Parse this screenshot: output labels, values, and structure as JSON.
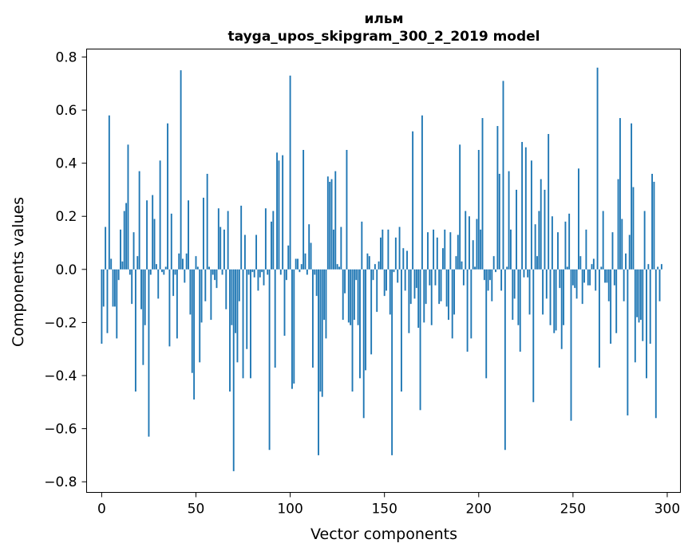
{
  "chart_data": {
    "type": "bar",
    "title_line1": "ильм",
    "title_line2": "tayga_upos_skipgram_300_2_2019 model",
    "xlabel": "Vector components",
    "ylabel": "Components values",
    "xlim": [
      -8,
      307
    ],
    "ylim": [
      -0.84,
      0.83
    ],
    "xticks": [
      0,
      50,
      100,
      150,
      200,
      250,
      300
    ],
    "xtick_labels": [
      "0",
      "50",
      "100",
      "150",
      "200",
      "250",
      "300"
    ],
    "yticks": [
      -0.8,
      -0.6,
      -0.4,
      -0.2,
      0.0,
      0.2,
      0.4,
      0.6,
      0.8
    ],
    "ytick_labels": [
      "−0.8",
      "−0.6",
      "−0.4",
      "−0.2",
      "0.0",
      "0.2",
      "0.4",
      "0.6",
      "0.8"
    ],
    "bar_color": "#1f77b4",
    "values": [
      -0.28,
      -0.14,
      0.16,
      -0.24,
      0.58,
      0.04,
      -0.14,
      -0.14,
      -0.26,
      -0.04,
      0.15,
      0.03,
      0.22,
      0.25,
      0.47,
      -0.02,
      -0.13,
      0.14,
      -0.46,
      0.05,
      0.37,
      -0.15,
      -0.36,
      -0.21,
      0.26,
      -0.63,
      -0.02,
      0.28,
      0.19,
      0.02,
      -0.11,
      0.41,
      -0.01,
      -0.02,
      0.01,
      0.55,
      -0.29,
      0.21,
      -0.1,
      -0.02,
      -0.26,
      0.06,
      0.75,
      0.04,
      -0.05,
      0.06,
      0.26,
      -0.17,
      -0.39,
      -0.49,
      0.05,
      0.01,
      -0.35,
      -0.2,
      0.27,
      -0.12,
      0.36,
      0.01,
      -0.19,
      -0.02,
      -0.04,
      -0.07,
      0.23,
      0.16,
      -0.02,
      0.15,
      -0.15,
      0.22,
      -0.46,
      -0.21,
      -0.76,
      -0.24,
      -0.35,
      -0.12,
      0.24,
      -0.41,
      0.13,
      -0.3,
      -0.02,
      -0.41,
      -0.01,
      -0.03,
      0.13,
      -0.08,
      -0.03,
      -0.01,
      -0.06,
      0.23,
      -0.02,
      -0.68,
      0.18,
      0.22,
      -0.37,
      0.44,
      0.41,
      -0.02,
      0.43,
      -0.25,
      -0.04,
      0.09,
      0.73,
      -0.45,
      -0.43,
      0.04,
      0.04,
      -0.01,
      0.02,
      0.45,
      0.06,
      -0.02,
      0.17,
      0.1,
      -0.37,
      -0.02,
      -0.1,
      -0.7,
      -0.46,
      -0.48,
      -0.19,
      -0.26,
      0.35,
      0.33,
      0.34,
      0.15,
      0.37,
      0.02,
      0.01,
      0.16,
      -0.19,
      -0.09,
      0.45,
      -0.2,
      -0.21,
      -0.46,
      -0.19,
      -0.04,
      -0.21,
      -0.41,
      0.18,
      -0.56,
      -0.38,
      0.06,
      0.05,
      -0.32,
      -0.04,
      0.02,
      -0.16,
      0.03,
      0.12,
      0.15,
      -0.1,
      -0.08,
      0.15,
      -0.17,
      -0.7,
      -0.01,
      0.12,
      -0.05,
      0.16,
      -0.46,
      0.08,
      -0.08,
      0.07,
      -0.24,
      -0.13,
      0.52,
      -0.11,
      -0.07,
      -0.22,
      -0.53,
      0.58,
      -0.2,
      -0.13,
      0.14,
      -0.06,
      -0.21,
      0.15,
      -0.06,
      0.12,
      -0.13,
      -0.12,
      0.08,
      0.15,
      -0.14,
      -0.19,
      0.14,
      -0.26,
      -0.17,
      0.05,
      0.13,
      0.47,
      0.03,
      -0.06,
      0.22,
      -0.31,
      0.2,
      -0.26,
      0.11,
      0.01,
      0.19,
      0.45,
      0.15,
      0.57,
      -0.04,
      -0.41,
      -0.08,
      -0.04,
      -0.12,
      0.05,
      -0.01,
      0.54,
      0.36,
      -0.08,
      0.71,
      -0.68,
      0.01,
      0.37,
      0.15,
      -0.19,
      -0.11,
      0.3,
      -0.21,
      -0.31,
      0.48,
      -0.03,
      0.46,
      -0.03,
      -0.17,
      0.41,
      -0.5,
      0.17,
      0.05,
      0.22,
      0.34,
      -0.17,
      0.3,
      -0.11,
      0.51,
      -0.21,
      0.2,
      -0.24,
      -0.23,
      0.14,
      -0.07,
      -0.3,
      -0.21,
      0.18,
      0.01,
      0.21,
      -0.57,
      -0.06,
      -0.07,
      -0.11,
      0.38,
      0.05,
      -0.13,
      -0.05,
      0.15,
      -0.06,
      -0.06,
      0.02,
      0.04,
      -0.08,
      0.76,
      -0.37,
      0.01,
      0.22,
      -0.05,
      -0.05,
      -0.12,
      -0.28,
      0.14,
      -0.06,
      -0.24,
      0.34,
      0.57,
      0.19,
      -0.12,
      0.06,
      -0.55,
      0.13,
      0.55,
      0.31,
      -0.35,
      -0.18,
      -0.2,
      -0.19,
      -0.27,
      0.22,
      -0.41,
      0.02,
      -0.28,
      0.36,
      0.33,
      -0.56,
      0.01,
      -0.12,
      0.02
    ]
  }
}
